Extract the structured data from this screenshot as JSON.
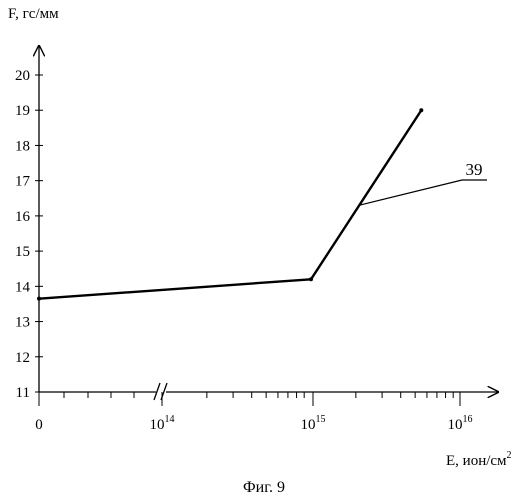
{
  "chart_data": {
    "type": "line",
    "ylabel": "F, гс/мм",
    "xlabel": "E, ион/см",
    "xlabel_sup": "2",
    "x_tick_labels": [
      {
        "text": "0"
      },
      {
        "text": "10",
        "sup": "14"
      },
      {
        "text": "10",
        "sup": "15"
      },
      {
        "text": "10",
        "sup": "16"
      }
    ],
    "x_axis_break": true,
    "y_ticks": [
      11,
      12,
      13,
      14,
      15,
      16,
      17,
      18,
      19,
      20
    ],
    "ylim": [
      11,
      20
    ],
    "series": [
      {
        "points": [
          {
            "x": 0,
            "y": 13.65
          },
          {
            "x": 1000000000000000.0,
            "y": 14.2
          },
          {
            "x": 5500000000000000.0,
            "y": 19.0
          }
        ]
      }
    ],
    "annotation": {
      "text": "39",
      "x": 2100000000000000.0,
      "y": 16.3
    },
    "caption": "Фиг. 9"
  }
}
